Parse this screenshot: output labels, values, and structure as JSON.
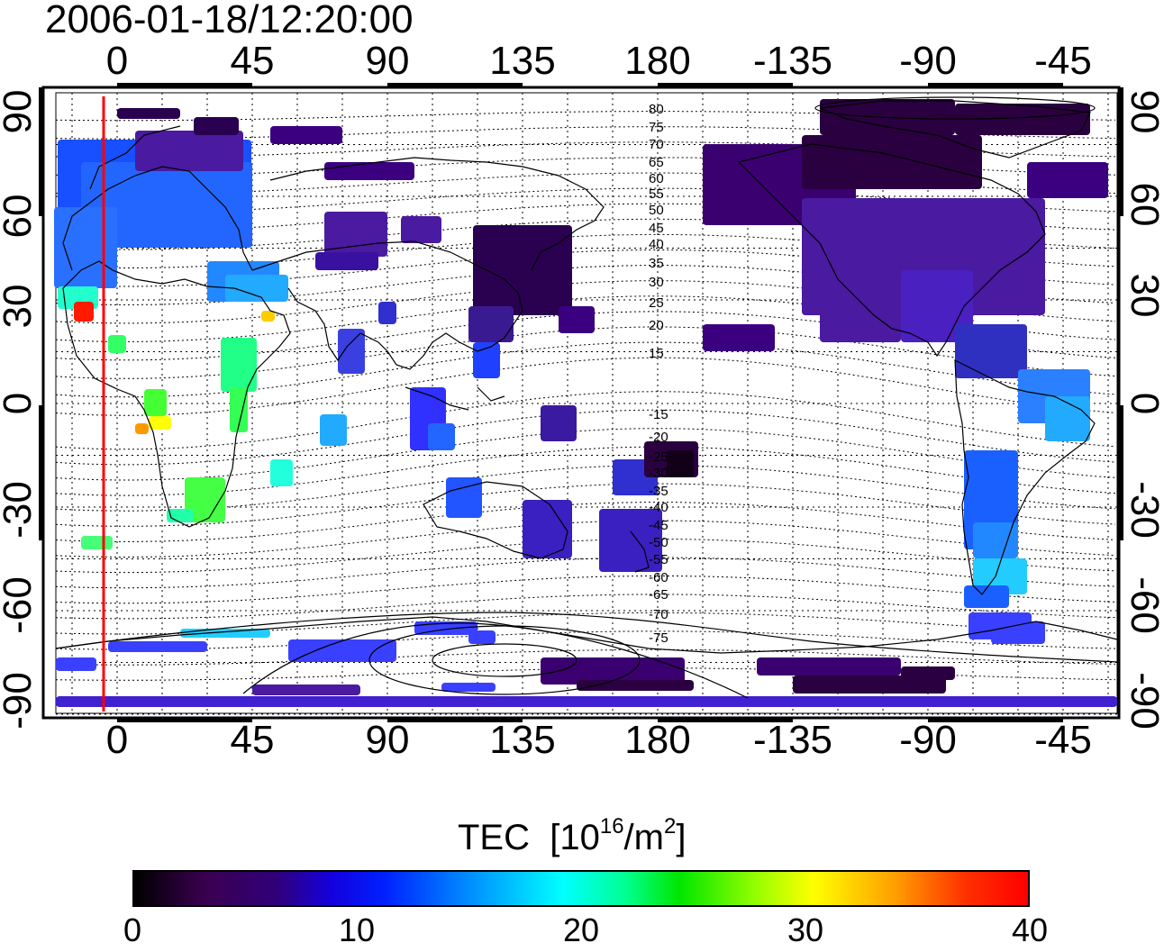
{
  "title": "2006-01-18/12:20:00",
  "colorbar": {
    "label": "TEC",
    "unit_base": "[10",
    "unit_exp": "16",
    "unit_mid": "/m",
    "unit_exp2": "2",
    "unit_end": "]",
    "ticks": [
      "0",
      "10",
      "20",
      "30",
      "40"
    ],
    "range": [
      0,
      40
    ]
  },
  "axes": {
    "lon_ticks": [
      "0",
      "45",
      "90",
      "135",
      "180",
      "-135",
      "-90",
      "-45"
    ],
    "lat_ticks": [
      "90",
      "60",
      "30",
      "0",
      "-30",
      "-60",
      "-90"
    ]
  },
  "contours": {
    "north_labels": [
      "80",
      "75",
      "70",
      "65",
      "60",
      "55",
      "50",
      "45",
      "40",
      "35",
      "30",
      "25",
      "20",
      "15"
    ],
    "south_labels": [
      "-15",
      "-20",
      "-25",
      "-30",
      "-35",
      "-40",
      "-45",
      "-50",
      "-55",
      "-60",
      "-65",
      "-70",
      "-75"
    ]
  },
  "colors": {
    "terminator": "#ff0000",
    "frame": "#000000"
  }
}
